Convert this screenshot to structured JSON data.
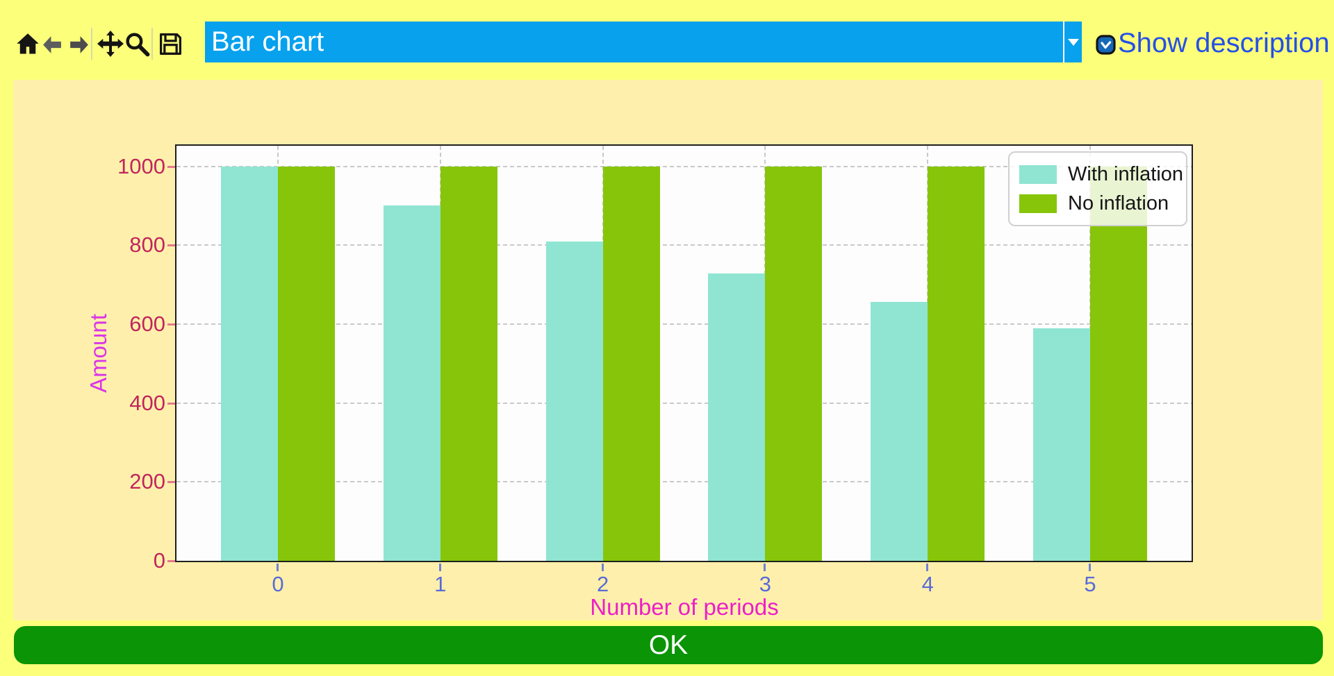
{
  "toolbar": {
    "icons": [
      {
        "name": "home"
      },
      {
        "name": "back"
      },
      {
        "name": "forward"
      },
      {
        "name": "pan"
      },
      {
        "name": "zoom"
      },
      {
        "name": "save"
      }
    ],
    "chart_selector": {
      "value": "Bar chart"
    },
    "show_description_label": "Show description"
  },
  "chart_data": {
    "type": "bar",
    "title": "",
    "categories": [
      "0",
      "1",
      "2",
      "3",
      "4",
      "5"
    ],
    "series": [
      {
        "name": "With inflation",
        "color": "#8FE5D2",
        "values": [
          1000,
          900,
          810,
          729,
          656,
          590
        ]
      },
      {
        "name": "No inflation",
        "color": "#87C50A",
        "values": [
          1000,
          1000,
          1000,
          1000,
          1000,
          1000
        ]
      }
    ],
    "xlabel": "Number of periods",
    "ylabel": "Amount",
    "ylim": [
      0,
      1052
    ],
    "yticks": [
      0,
      200,
      400,
      600,
      800,
      1000
    ],
    "grid": true,
    "legend_position": "upper right"
  },
  "colors": {
    "window_background": "#FCFF7A",
    "figure_background": "#FEF0AC",
    "combo_blue": "#07A1EE",
    "show_description_text": "#2450E6",
    "ok_green": "#0A9406",
    "ytick_text": "#C2255C",
    "xtick_text": "#5A6AD8",
    "axis_label_magenta": "#E020E0",
    "bar_teal": "#8FE5D2",
    "bar_green": "#87C50A"
  },
  "footer": {
    "ok_label": "OK"
  }
}
